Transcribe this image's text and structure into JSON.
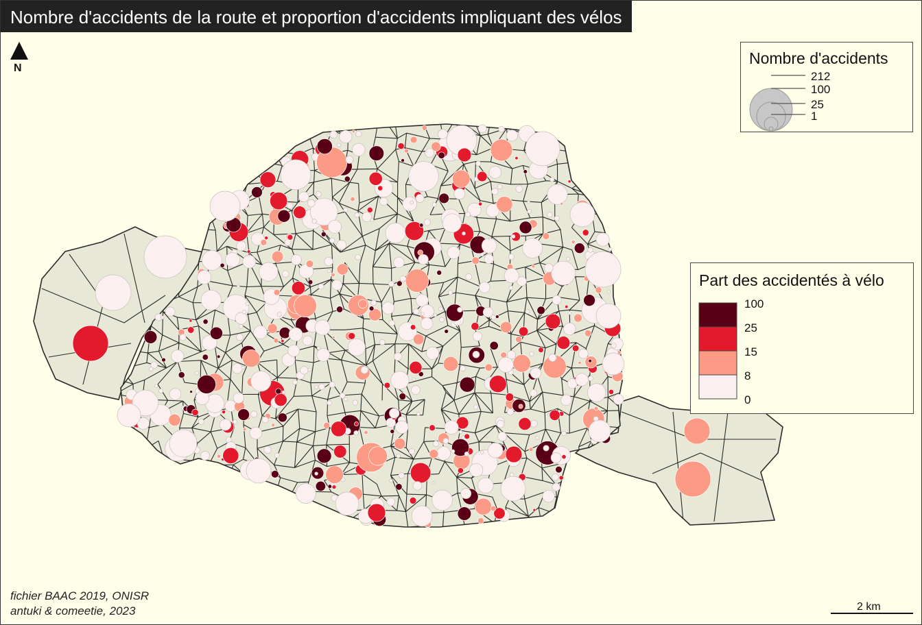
{
  "title": "Nombre d'accidents de la route et proportion d'accidents impliquant des vélos",
  "north_label": "N",
  "credits": {
    "line1": "fichier BAAC 2019, ONISR",
    "line2": "antuki & comeetie, 2023"
  },
  "scale": {
    "label": "2 km"
  },
  "legend_size": {
    "title": "Nombre d'accidents",
    "values": [
      "212",
      "100",
      "25",
      "1"
    ]
  },
  "legend_color": {
    "title": "Part des accidentés à vélo",
    "breaks": [
      "100",
      "25",
      "15",
      "8",
      "0"
    ],
    "colors": [
      "#5a0016",
      "#e31a2c",
      "#fc9b85",
      "#fbeff0"
    ]
  },
  "colors": {
    "background": "#fffee8",
    "land": "#e8e8d6",
    "street": "#2a2a2a",
    "bubble_outline": "#c9c0bc"
  }
}
